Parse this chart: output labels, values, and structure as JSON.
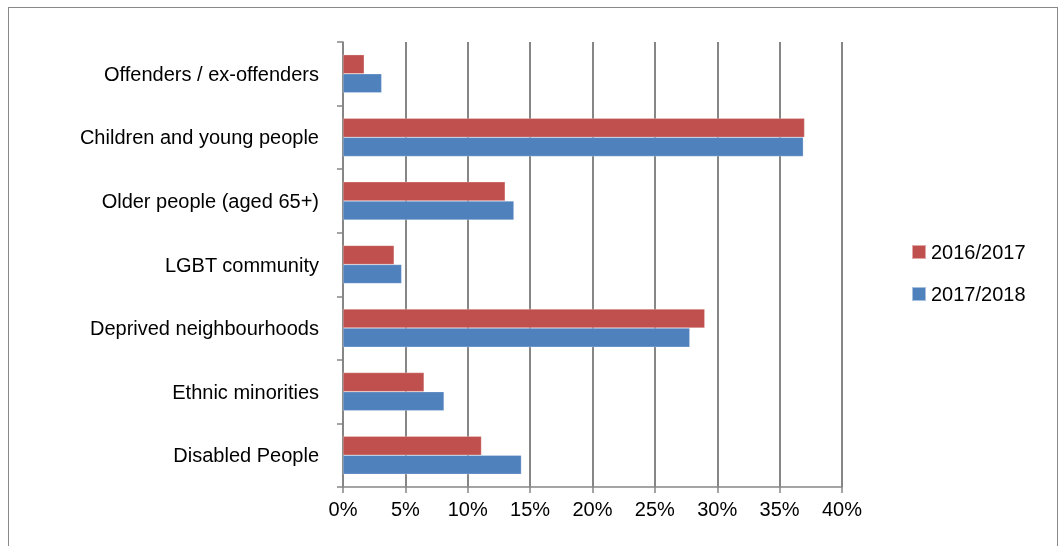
{
  "chart_data": {
    "type": "bar",
    "orientation": "horizontal",
    "categories": [
      "Offenders / ex-offenders",
      "Children and young people",
      "Older people (aged 65+)",
      "LGBT community",
      "Deprived neighbourhoods",
      "Ethnic minorities",
      "Disabled People"
    ],
    "series": [
      {
        "name": "2016/2017",
        "color": "#c0504d",
        "values": [
          1.7,
          37.0,
          13.0,
          4.1,
          29.0,
          6.5,
          11.1
        ]
      },
      {
        "name": "2017/2018",
        "color": "#4f81bd",
        "values": [
          3.1,
          36.9,
          13.7,
          4.7,
          27.8,
          8.1,
          14.3
        ]
      }
    ],
    "xlim": [
      0,
      40
    ],
    "xticks": [
      {
        "value": 0,
        "label": "0%"
      },
      {
        "value": 5,
        "label": "5%"
      },
      {
        "value": 10,
        "label": "10%"
      },
      {
        "value": 15,
        "label": "15%"
      },
      {
        "value": 20,
        "label": "20%"
      },
      {
        "value": 25,
        "label": "25%"
      },
      {
        "value": 30,
        "label": "30%"
      },
      {
        "value": 35,
        "label": "35%"
      },
      {
        "value": 40,
        "label": "40%"
      }
    ],
    "grid": "x",
    "legend": "right"
  }
}
